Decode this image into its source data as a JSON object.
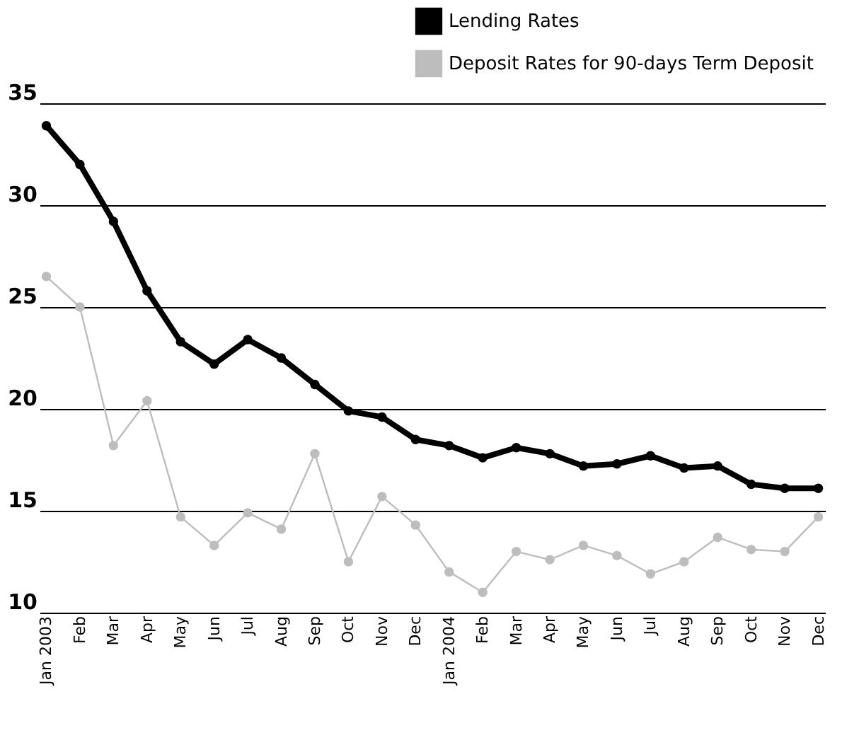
{
  "chart_data": {
    "type": "line",
    "categories": [
      "Jan 2003",
      "Feb",
      "Mar",
      "Apr",
      "May",
      "Jun",
      "Jul",
      "Aug",
      "Sep",
      "Oct",
      "Nov",
      "Dec",
      "Jan 2004",
      "Feb",
      "Mar",
      "Apr",
      "May",
      "Jun",
      "Jul",
      "Aug",
      "Sep",
      "Oct",
      "Nov",
      "Dec"
    ],
    "series": [
      {
        "name": "Lending Rates",
        "color": "#000000",
        "values": [
          33.9,
          32.0,
          29.2,
          25.8,
          23.3,
          22.2,
          23.4,
          22.5,
          21.2,
          19.9,
          19.6,
          18.5,
          18.2,
          17.6,
          18.1,
          17.8,
          17.2,
          17.3,
          17.7,
          17.1,
          17.2,
          16.3,
          16.1,
          16.1
        ]
      },
      {
        "name": "Deposit Rates for 90-days Term Deposit",
        "color": "#bdbdbd",
        "values": [
          26.5,
          25.0,
          18.2,
          20.4,
          14.7,
          13.3,
          14.9,
          14.1,
          17.8,
          12.5,
          15.7,
          14.3,
          12.0,
          11.0,
          13.0,
          12.6,
          13.3,
          12.8,
          11.9,
          12.5,
          13.7,
          13.1,
          13.0,
          14.7
        ]
      }
    ],
    "ylim": [
      10,
      35
    ],
    "yticks": [
      10,
      15,
      20,
      25,
      30,
      35
    ],
    "grid": "y",
    "legend": "top right",
    "marker": "circle",
    "line_style": "solid"
  }
}
